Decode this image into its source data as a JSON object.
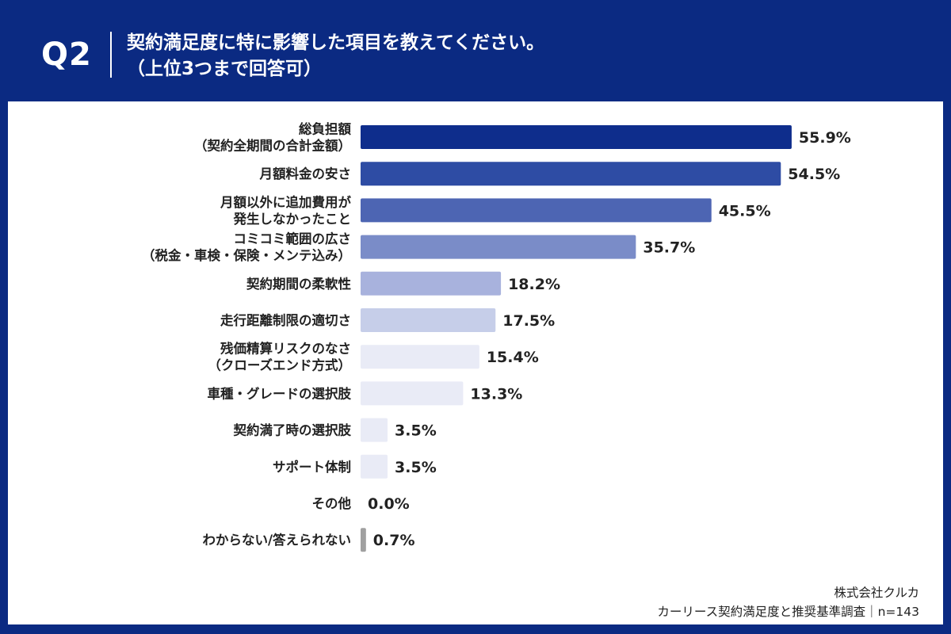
{
  "header": {
    "question_label": "Q2",
    "title_line1": "契約満足度に特に影響した項目を教えてください。",
    "title_line2": "（上位3つまで回答可）"
  },
  "chart_data": {
    "type": "bar",
    "orientation": "horizontal",
    "categories": [
      [
        "総負担額",
        "（契約全期間の合計金額）"
      ],
      [
        "月額料金の安さ"
      ],
      [
        "月額以外に追加費用が",
        "発生しなかったこと"
      ],
      [
        "コミコミ範囲の広さ",
        "（税金・車検・保険・メンテ込み）"
      ],
      [
        "契約期間の柔軟性"
      ],
      [
        "走行距離制限の適切さ"
      ],
      [
        "残価精算リスクのなさ",
        "（クローズエンド方式）"
      ],
      [
        "車種・グレードの選択肢"
      ],
      [
        "契約満了時の選択肢"
      ],
      [
        "サポート体制"
      ],
      [
        "その他"
      ],
      [
        "わからない/答えられない"
      ]
    ],
    "values": [
      55.9,
      54.5,
      45.5,
      35.7,
      18.2,
      17.5,
      15.4,
      13.3,
      3.5,
      3.5,
      0.0,
      0.7
    ],
    "value_labels": [
      "55.9%",
      "54.5%",
      "45.5%",
      "35.7%",
      "18.2%",
      "17.5%",
      "15.4%",
      "13.3%",
      "3.5%",
      "3.5%",
      "0.0%",
      "0.7%"
    ],
    "colors": [
      "#0e2d8c",
      "#2e4ca4",
      "#4d65b3",
      "#7a8cc8",
      "#a8b2dd",
      "#c6cee9",
      "#e9ebf6",
      "#e9ebf6",
      "#e9ebf6",
      "#e9ebf6",
      "#e9ebf6",
      "#a0a0a0"
    ],
    "xlim": [
      0,
      57.5
    ],
    "grid": false,
    "legend": "none"
  },
  "footer": {
    "company": "株式会社クルカ",
    "survey": "カーリース契約満足度と推奨基準調査｜n=143"
  }
}
